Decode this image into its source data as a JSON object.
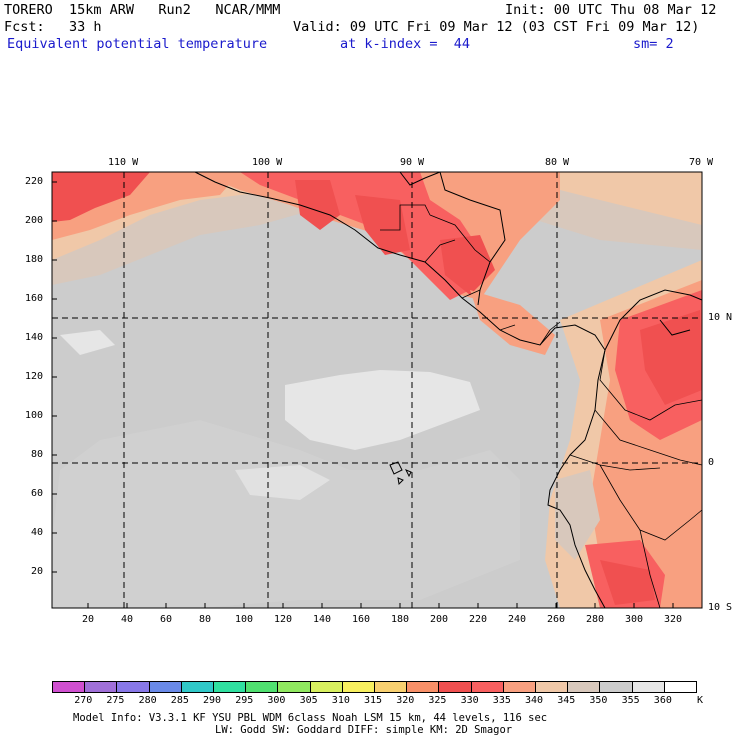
{
  "header": {
    "model": "TORERO  15km ARW   Run2   NCAR/MMM",
    "init": "Init: 00 UTC Thu 08 Mar 12",
    "fcst": "Fcst:   33 h",
    "valid": "Valid: 09 UTC Fri 09 Mar 12 (03 CST Fri 09 Mar 12)",
    "field": "Equivalent potential temperature",
    "level": "at k-index =  44",
    "smoothing": "sm= 2"
  },
  "map": {
    "lon_labels": [
      "110 W",
      "100 W",
      "90 W",
      "80 W",
      "70 W"
    ],
    "lat_labels": [
      "10 N",
      "0",
      "10 S"
    ],
    "y_ticks": [
      "220",
      "200",
      "180",
      "160",
      "140",
      "120",
      "100",
      "80",
      "60",
      "40",
      "20"
    ],
    "x_ticks": [
      "20",
      "40",
      "60",
      "80",
      "100",
      "120",
      "140",
      "160",
      "180",
      "200",
      "220",
      "240",
      "260",
      "280",
      "300",
      "320"
    ]
  },
  "colorbar": {
    "labels": [
      "270",
      "275",
      "280",
      "285",
      "290",
      "295",
      "300",
      "305",
      "310",
      "315",
      "320",
      "325",
      "330",
      "335",
      "340",
      "345",
      "350",
      "355",
      "360"
    ],
    "unit": "K",
    "colors": [
      "#d050d0",
      "#a070d8",
      "#8878e8",
      "#6a8ae8",
      "#30c8c8",
      "#30e0a0",
      "#50e070",
      "#90e860",
      "#d8f060",
      "#f8f060",
      "#f8d070",
      "#f89068",
      "#f05050",
      "#f86060",
      "#f8a080",
      "#f0c8a8",
      "#d8c8bc",
      "#cccccc",
      "#e6e6e6",
      "#ffffff"
    ]
  },
  "footer": {
    "line1": "Model Info: V3.3.1   KF     YSU PBL  WDM 6class  Noah LSM  15 km,   44 levels,  116 sec",
    "line2": "LW: Godd SW: Goddard DIFF: simple KM: 2D Smagor"
  }
}
